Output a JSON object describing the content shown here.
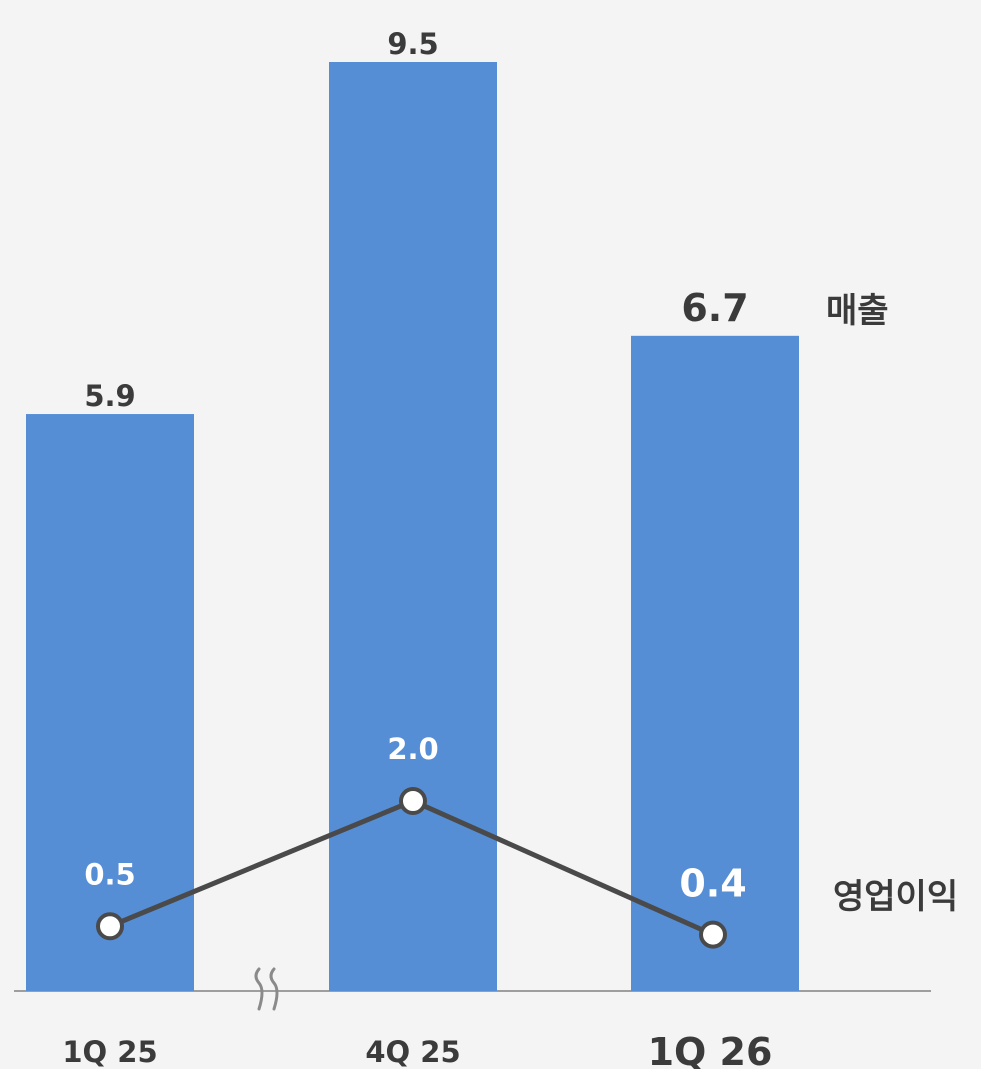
{
  "chart_data": {
    "type": "bar",
    "categories": [
      "1Q 25",
      "4Q 25",
      "1Q 26"
    ],
    "series": [
      {
        "name": "매출",
        "type": "bar",
        "values": [
          5.9,
          9.5,
          6.7
        ],
        "labels": [
          "5.9",
          "9.5",
          "6.7"
        ]
      },
      {
        "name": "영업이익",
        "type": "line",
        "values": [
          0.5,
          2.0,
          0.4
        ],
        "labels": [
          "0.5",
          "2.0",
          "0.4"
        ]
      }
    ],
    "axis_break": true,
    "grid": false,
    "legend_placement": "right, beside last bar",
    "highlight_category": "1Q 26",
    "colors": {
      "bar": "#568ed6",
      "line": "#4a4a4a",
      "marker_fill": "#ffffff",
      "text": "#3b3b3b",
      "line_label": "#ffffff",
      "baseline": "#9e9e9e",
      "background": "#f4f4f4"
    }
  }
}
